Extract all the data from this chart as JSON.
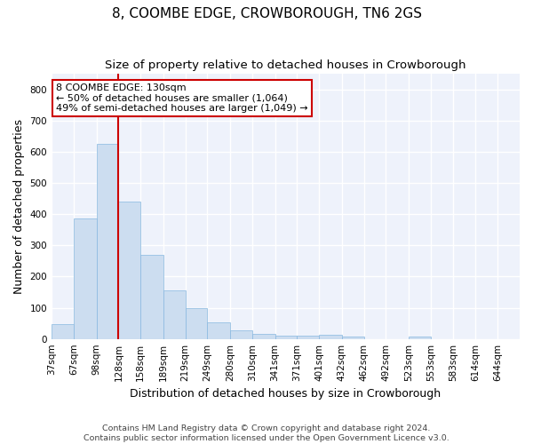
{
  "title": "8, COOMBE EDGE, CROWBOROUGH, TN6 2GS",
  "subtitle": "Size of property relative to detached houses in Crowborough",
  "xlabel": "Distribution of detached houses by size in Crowborough",
  "ylabel": "Number of detached properties",
  "bar_color": "#ccddf0",
  "bar_edge_color": "#88b8e0",
  "vline_color": "#cc0000",
  "vline_x_bin_index": 3,
  "annotation_line1": "8 COOMBE EDGE: 130sqm",
  "annotation_line2": "← 50% of detached houses are smaller (1,064)",
  "annotation_line3": "49% of semi-detached houses are larger (1,049) →",
  "footer": "Contains HM Land Registry data © Crown copyright and database right 2024.\nContains public sector information licensed under the Open Government Licence v3.0.",
  "bins": [
    37,
    67,
    98,
    128,
    158,
    189,
    219,
    249,
    280,
    310,
    341,
    371,
    401,
    432,
    462,
    492,
    523,
    553,
    583,
    614,
    644
  ],
  "counts": [
    47,
    385,
    625,
    440,
    270,
    155,
    100,
    53,
    28,
    17,
    11,
    11,
    14,
    8,
    0,
    0,
    8,
    0,
    0,
    0
  ],
  "ylim": [
    0,
    850
  ],
  "yticks": [
    0,
    100,
    200,
    300,
    400,
    500,
    600,
    700,
    800
  ],
  "background_color": "#eef2fb",
  "grid_color": "#ffffff",
  "title_fontsize": 11,
  "subtitle_fontsize": 9.5,
  "axis_label_fontsize": 9,
  "tick_fontsize": 7.5,
  "annotation_fontsize": 8
}
